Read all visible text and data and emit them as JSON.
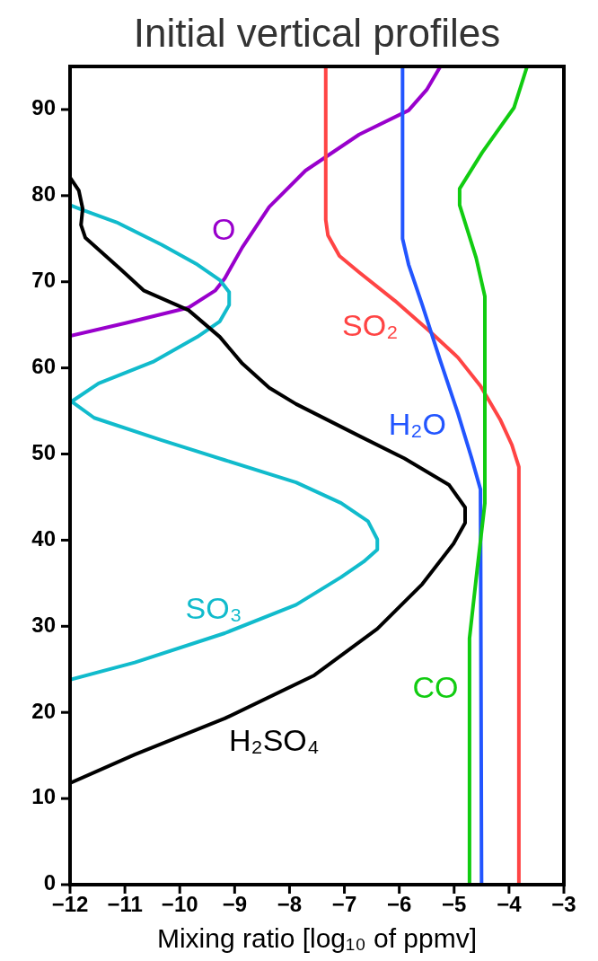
{
  "chart_data": {
    "type": "line",
    "title": "Initial vertical profiles",
    "xlabel": "Mixing ratio [log₁₀ of ppmv]",
    "xlim": [
      -12,
      -3
    ],
    "ylim": [
      0,
      95
    ],
    "xticks": [
      -12,
      -11,
      -10,
      -9,
      -8,
      -7,
      -6,
      -5,
      -4,
      -3
    ],
    "yticks": [
      0,
      10,
      20,
      30,
      40,
      50,
      60,
      70,
      80,
      90
    ],
    "series": [
      {
        "name": "O",
        "color": "#9900cc",
        "x": [
          -12,
          -10.99,
          -9.84,
          -9.35,
          -9.18,
          -8.86,
          -8.37,
          -7.71,
          -6.73,
          -5.83,
          -5.5,
          -5.26
        ],
        "values": [
          63.7,
          65.2,
          67,
          69,
          70.4,
          74,
          78.7,
          82.9,
          87.1,
          89.9,
          92.3,
          94.9
        ]
      },
      {
        "name": "SO₂",
        "color": "#ff4444",
        "x": [
          -7.34,
          -7.34,
          -7.3,
          -7.09,
          -6.73,
          -6.08,
          -5.42,
          -4.93,
          -4.52,
          -4.16,
          -3.95,
          -3.82,
          -3.82
        ],
        "values": [
          95,
          77.2,
          75.4,
          73,
          71.1,
          67.8,
          64.1,
          61.2,
          57.9,
          54,
          51.1,
          48.5,
          0
        ]
      },
      {
        "name": "H₂O",
        "color": "#2255ff",
        "x": [
          -5.94,
          -5.94,
          -5.83,
          -5.58,
          -5.26,
          -4.93,
          -4.68,
          -4.52,
          -4.5
        ],
        "values": [
          95,
          75,
          72,
          67.3,
          61,
          54.7,
          49.5,
          45.9,
          0
        ]
      },
      {
        "name": "CO",
        "color": "#11cc11",
        "x": [
          -3.67,
          -3.91,
          -4.49,
          -4.9,
          -4.9,
          -4.6,
          -4.44,
          -4.44,
          -4.58,
          -4.72,
          -4.72
        ],
        "values": [
          95,
          90.2,
          85,
          80.8,
          78.9,
          72.8,
          68.3,
          44.3,
          36.6,
          28.6,
          0
        ]
      },
      {
        "name": "SO₃",
        "color": "#11bbcc",
        "x": [
          -12,
          -10.82,
          -9.18,
          -7.88,
          -7.06,
          -6.65,
          -6.4,
          -6.4,
          -6.57,
          -7.06,
          -7.88,
          -9.18,
          -10.33,
          -11.56,
          -11.97,
          -11.48,
          -10.49,
          -9.68,
          -9.27,
          -9.1,
          -9.1,
          -9.27,
          -9.68,
          -10.33,
          -11.15,
          -11.8,
          -12
        ],
        "values": [
          23.8,
          25.8,
          29.2,
          32.5,
          35.7,
          37.5,
          38.9,
          40.1,
          42.2,
          44.3,
          46.7,
          49.3,
          51.6,
          54.2,
          56.1,
          58.2,
          60.7,
          63.6,
          65.4,
          67.3,
          68.8,
          70.2,
          72,
          74.3,
          76.9,
          78.4,
          78.9
        ]
      },
      {
        "name": "H₂SO₄",
        "color": "#000000",
        "x": [
          -12,
          -10.82,
          -9.18,
          -7.55,
          -6.4,
          -5.58,
          -5.01,
          -4.8,
          -4.8,
          -5.09,
          -5.91,
          -6.73,
          -7.88,
          -8.37,
          -8.86,
          -9.27,
          -9.84,
          -10.66,
          -11.07,
          -11.72,
          -11.8,
          -11.77,
          -11.84,
          -12
        ],
        "values": [
          11.8,
          15.1,
          19.3,
          24.3,
          29.7,
          34.9,
          39.6,
          42,
          43.8,
          46.4,
          49.5,
          52.1,
          55.8,
          57.7,
          60.5,
          63.6,
          66.7,
          69,
          71.4,
          75.1,
          76.6,
          78.5,
          80.6,
          82.1
        ]
      }
    ]
  }
}
